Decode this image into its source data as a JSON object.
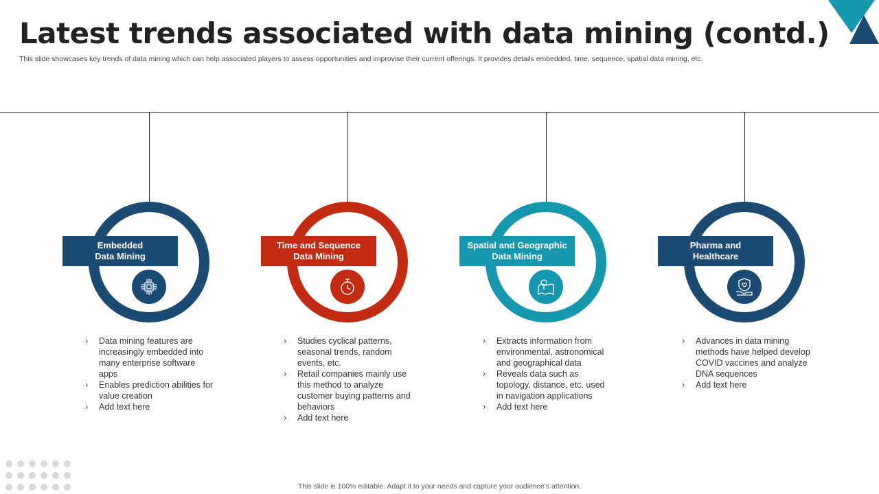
{
  "header": {
    "title": "Latest trends associated with data mining (contd.)",
    "subtitle": "This slide showcases key trends of data mining which can help associated players to assess opportunities and improvise their current offerings. It provides details embedded, time, sequence, spatial data mining, etc."
  },
  "colors": {
    "navy": "#1b4a72",
    "red": "#c32a12",
    "teal": "#1598ad"
  },
  "trends": [
    {
      "label": "Embedded\nData Mining",
      "icon": "chip-icon",
      "bullets": [
        "Data mining features are increasingly embedded into many enterprise software apps",
        "Enables prediction abilities for value creation",
        "Add text here"
      ]
    },
    {
      "label": "Time and Sequence\nData Mining",
      "icon": "stopwatch-icon",
      "bullets": [
        "Studies cyclical patterns, seasonal trends, random events, etc.",
        "Retail companies mainly use this method to analyze customer buying patterns and behaviors",
        "Add text here"
      ]
    },
    {
      "label": "Spatial and Geographic\nData Mining",
      "icon": "map-pin-icon",
      "bullets": [
        "Extracts information from environmental, astronomical and geographical data",
        "Reveals data such as topology, distance, etc. used in navigation applications",
        "Add text here"
      ]
    },
    {
      "label": "Pharma and\nHealthcare",
      "icon": "healthcare-shield-icon",
      "bullets": [
        "Advances in data mining methods have helped develop COVID vaccines and analyze DNA sequences",
        "Add text here"
      ]
    }
  ],
  "footer": "This slide is 100% editable. Adapt it to your needs and capture your audience's attention."
}
